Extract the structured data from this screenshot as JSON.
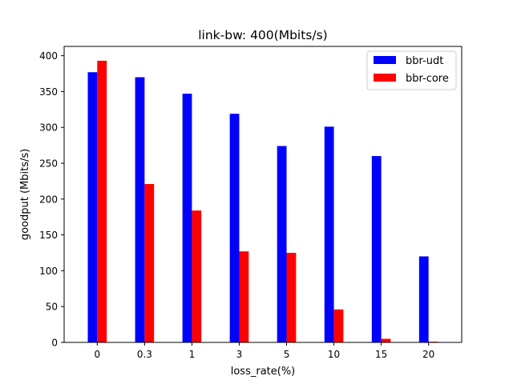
{
  "chart_data": {
    "type": "bar",
    "title": "link-bw: 400(Mbits/s)",
    "xlabel": "loss_rate(%)",
    "ylabel": "goodput (Mbits/s)",
    "categories": [
      "0",
      "0.3",
      "1",
      "3",
      "5",
      "10",
      "15",
      "20"
    ],
    "series": [
      {
        "name": "bbr-udt",
        "color": "#0000ff",
        "values": [
          377,
          370,
          347,
          319,
          274,
          301,
          260,
          120
        ]
      },
      {
        "name": "bbr-core",
        "color": "#ff0000",
        "values": [
          393,
          221,
          184,
          127,
          125,
          46,
          5,
          1
        ]
      }
    ],
    "ylim": [
      0,
      413
    ],
    "yticks": [
      0,
      50,
      100,
      150,
      200,
      250,
      300,
      350,
      400
    ],
    "grid": false,
    "legend_position": "top-right"
  }
}
